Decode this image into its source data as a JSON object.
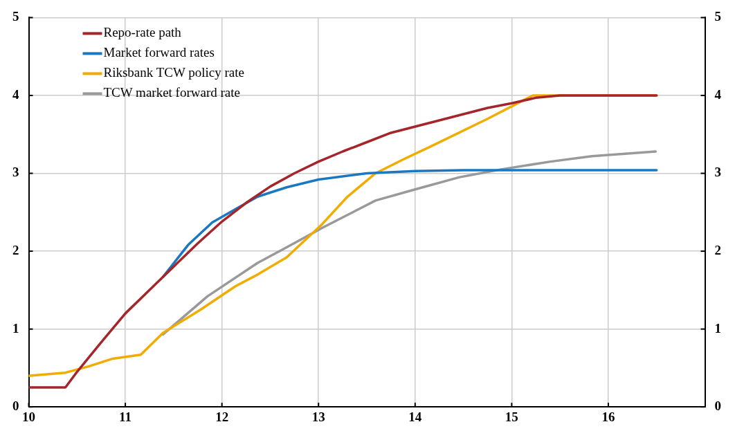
{
  "chart_data": {
    "type": "line",
    "xlim": [
      10,
      17
    ],
    "xticks": [
      10,
      11,
      12,
      13,
      14,
      15,
      16
    ],
    "ylim": [
      0,
      5
    ],
    "yticks": [
      0,
      1,
      2,
      3,
      4,
      5
    ],
    "y2lim": [
      0,
      5
    ],
    "y2ticks": [
      0,
      1,
      2,
      3,
      4,
      5
    ],
    "grid": true,
    "legend": "top left",
    "marker": "none",
    "line_style": "solid",
    "series": [
      {
        "name": "Repo-rate path",
        "color": "#a5252b",
        "x": [
          10,
          10.38,
          10.5,
          10.75,
          11,
          11.25,
          11.39,
          11.75,
          12,
          12.25,
          12.5,
          12.75,
          13,
          13.25,
          13.5,
          13.75,
          14,
          14.25,
          14.5,
          14.75,
          15,
          15.25,
          15.5,
          16.5
        ],
        "values": [
          0.25,
          0.25,
          0.45,
          0.83,
          1.2,
          1.5,
          1.67,
          2.1,
          2.38,
          2.62,
          2.83,
          3.0,
          3.15,
          3.28,
          3.4,
          3.52,
          3.6,
          3.68,
          3.76,
          3.84,
          3.9,
          3.97,
          4.0,
          4.0
        ]
      },
      {
        "name": "Market forward rates",
        "color": "#1a78c2",
        "x": [
          11.39,
          11.65,
          11.9,
          12.17,
          12.37,
          12.67,
          13,
          13.5,
          14,
          14.5,
          16.5
        ],
        "values": [
          1.67,
          2.08,
          2.37,
          2.56,
          2.7,
          2.82,
          2.92,
          3.0,
          3.03,
          3.04,
          3.04
        ]
      },
      {
        "name": "Riksbank TCW policy rate",
        "color": "#f0ac00",
        "x": [
          10,
          10.38,
          10.62,
          10.87,
          11.16,
          11.39,
          11.78,
          12.14,
          12.37,
          12.67,
          13.04,
          13.3,
          13.59,
          13.88,
          14.17,
          14.75,
          15.22,
          16.5
        ],
        "values": [
          0.4,
          0.44,
          0.52,
          0.62,
          0.67,
          0.95,
          1.25,
          1.55,
          1.7,
          1.92,
          2.35,
          2.7,
          3.0,
          3.18,
          3.35,
          3.7,
          4.0,
          4.0
        ]
      },
      {
        "name": "TCW market forward rate",
        "color": "#999999",
        "x": [
          11.39,
          11.85,
          12.37,
          12.67,
          13.04,
          13.59,
          14.02,
          14.46,
          14.89,
          15.4,
          15.83,
          16.49
        ],
        "values": [
          0.93,
          1.42,
          1.85,
          2.05,
          2.3,
          2.65,
          2.8,
          2.95,
          3.05,
          3.15,
          3.22,
          3.28
        ]
      }
    ]
  }
}
